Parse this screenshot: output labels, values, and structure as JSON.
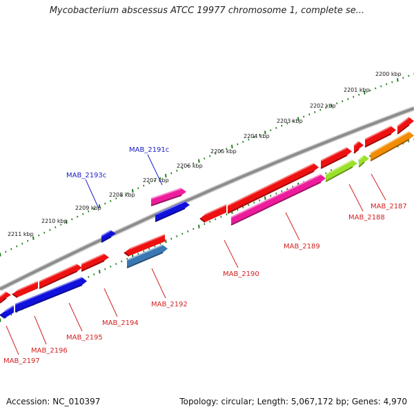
{
  "title": "Mycobacterium abscessus ATCC 19977 chromosome 1, complete se...",
  "footer": {
    "accession": "Accession: NC_010397",
    "summary": "Topology: circular; Length: 5,067,172 bp; Genes: 4,970"
  },
  "colors": {
    "backbone": "#8c8c8c",
    "tick": "#1e7d1e",
    "reverse_label": "#d42020",
    "forward_label": "#1c1cc8"
  },
  "scale_labels": [
    "2200 kbp",
    "2201 kbp",
    "2202 kbp",
    "2203 kbp",
    "2204 kbp",
    "2205 kbp",
    "2206 kbp",
    "2207 kbp",
    "2208 kbp",
    "2209 kbp",
    "2210 kbp",
    "2211 kbp"
  ],
  "genes": [
    {
      "name": "MAB_2187",
      "strand": "reverse",
      "color": "#f28c00"
    },
    {
      "name": "MAB_2188",
      "strand": "reverse",
      "color": "#9be02a"
    },
    {
      "name": "MAB_2189",
      "strand": "reverse",
      "color": "#ee1c9c"
    },
    {
      "name": "MAB_2190",
      "strand": "reverse",
      "color": "#ee1111"
    },
    {
      "name": "MAB_2191c",
      "strand": "forward",
      "color": "#ee1c9c"
    },
    {
      "name": "MAB_2192",
      "strand": "reverse",
      "color": "#3a78b4"
    },
    {
      "name": "MAB_2193c",
      "strand": "forward",
      "color": "#1111dd"
    },
    {
      "name": "MAB_2194",
      "strand": "reverse",
      "color": "#ee1111"
    },
    {
      "name": "MAB_2195",
      "strand": "reverse",
      "color": "#1111dd"
    },
    {
      "name": "MAB_2196",
      "strand": "reverse",
      "color": "#ee1111"
    },
    {
      "name": "MAB_2197",
      "strand": "reverse",
      "color": "#1111dd"
    }
  ]
}
